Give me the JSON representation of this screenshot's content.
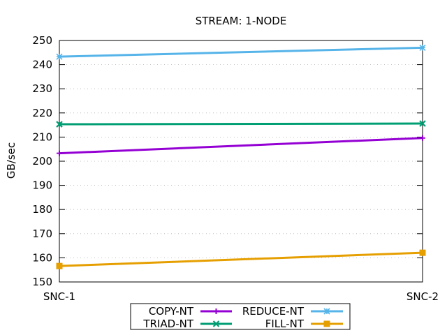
{
  "chart_data": {
    "type": "line",
    "title": "STREAM: 1-NODE",
    "xlabel": "",
    "ylabel": "GB/sec",
    "categories": [
      "SNC-1",
      "SNC-2"
    ],
    "ylim": [
      150,
      250
    ],
    "yticks": [
      150,
      160,
      170,
      180,
      190,
      200,
      210,
      220,
      230,
      240,
      250
    ],
    "grid": true,
    "legend_position": "bottom-center",
    "series": [
      {
        "name": "COPY-NT",
        "values": [
          203.3,
          209.6
        ],
        "color": "#9400d3",
        "marker": "plus"
      },
      {
        "name": "REDUCE-NT",
        "values": [
          243.3,
          247.0
        ],
        "color": "#56b4e9",
        "marker": "star"
      },
      {
        "name": "TRIAD-NT",
        "values": [
          215.3,
          215.6
        ],
        "color": "#009e73",
        "marker": "cross"
      },
      {
        "name": "FILL-NT",
        "values": [
          156.6,
          162.1
        ],
        "color": "#e69f00",
        "marker": "square"
      }
    ]
  }
}
